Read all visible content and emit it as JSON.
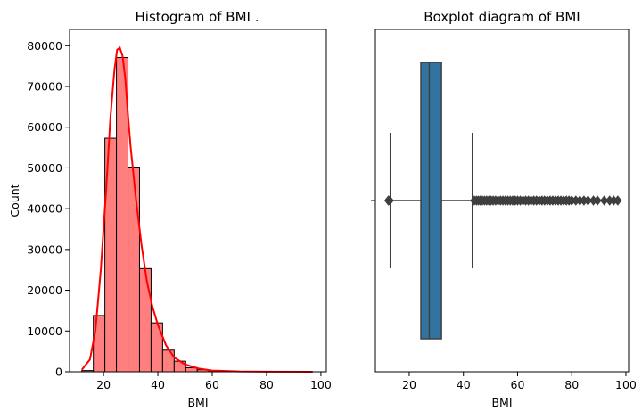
{
  "chart_data": [
    {
      "type": "bar",
      "title": "Histogram of BMI .",
      "xlabel": "BMI",
      "ylabel": "Count",
      "xlim": [
        7.5,
        102
      ],
      "ylim": [
        0,
        84000
      ],
      "xticks": [
        20,
        40,
        60,
        80,
        100
      ],
      "yticks": [
        0,
        10000,
        20000,
        30000,
        40000,
        50000,
        60000,
        70000,
        80000
      ],
      "bins": [
        {
          "x0": 12.0,
          "x1": 16.25,
          "count": 300
        },
        {
          "x0": 16.25,
          "x1": 20.5,
          "count": 13800
        },
        {
          "x0": 20.5,
          "x1": 24.75,
          "count": 57300
        },
        {
          "x0": 24.75,
          "x1": 29.0,
          "count": 77100
        },
        {
          "x0": 29.0,
          "x1": 33.25,
          "count": 50200
        },
        {
          "x0": 33.25,
          "x1": 37.5,
          "count": 25300
        },
        {
          "x0": 37.5,
          "x1": 41.75,
          "count": 12000
        },
        {
          "x0": 41.75,
          "x1": 46.0,
          "count": 5300
        },
        {
          "x0": 46.0,
          "x1": 50.25,
          "count": 2600
        },
        {
          "x0": 50.25,
          "x1": 54.5,
          "count": 1000
        },
        {
          "x0": 54.5,
          "x1": 58.75,
          "count": 500
        },
        {
          "x0": 58.75,
          "x1": 63.0,
          "count": 250
        },
        {
          "x0": 63.0,
          "x1": 67.25,
          "count": 120
        },
        {
          "x0": 67.25,
          "x1": 71.5,
          "count": 60
        },
        {
          "x0": 71.5,
          "x1": 75.75,
          "count": 30
        },
        {
          "x0": 75.75,
          "x1": 80.0,
          "count": 15
        },
        {
          "x0": 80.0,
          "x1": 84.25,
          "count": 10
        },
        {
          "x0": 84.25,
          "x1": 88.5,
          "count": 5
        },
        {
          "x0": 88.5,
          "x1": 92.75,
          "count": 3
        },
        {
          "x0": 92.75,
          "x1": 97.0,
          "count": 2
        }
      ],
      "kde": {
        "x": [
          12,
          15,
          17,
          19,
          21,
          22.5,
          24,
          25,
          26,
          27,
          28,
          29,
          30,
          32,
          34,
          36,
          38,
          40,
          43,
          46,
          50,
          55,
          60,
          70,
          80,
          97
        ],
        "y": [
          500,
          3000,
          10000,
          25000,
          45000,
          62000,
          74000,
          79000,
          79500,
          77500,
          72000,
          63000,
          55000,
          42000,
          31000,
          22000,
          16000,
          11500,
          6500,
          3500,
          1800,
          800,
          300,
          80,
          20,
          0
        ]
      },
      "colors": {
        "fill": "#ff7f7f",
        "edge": "#000000",
        "kde": "#ff0000"
      }
    },
    {
      "type": "box",
      "title": "Boxplot diagram of BMI",
      "xlabel": "BMI",
      "xlim": [
        7.5,
        101
      ],
      "xticks": [
        20,
        40,
        60,
        80,
        100
      ],
      "stats": {
        "whislo": 13,
        "q1": 24.3,
        "median": 27.4,
        "q3": 31.9,
        "whishi": 43.3
      },
      "fliers": [
        12.3,
        12.8,
        44,
        44.8,
        45.5,
        46.2,
        47,
        47.8,
        48.6,
        49.4,
        50.2,
        51,
        51.9,
        52.8,
        53.7,
        54.6,
        55.5,
        56.4,
        57.3,
        58.2,
        59.1,
        60,
        61,
        62,
        63,
        64,
        65,
        66,
        67,
        68,
        69,
        70,
        71,
        72,
        73,
        74,
        75,
        76,
        77,
        78,
        79,
        80,
        81.5,
        83,
        84.5,
        86,
        88,
        89.5,
        92,
        94,
        95.5,
        97
      ],
      "colors": {
        "box": "#3274a1",
        "line": "#3f3f3f"
      }
    }
  ]
}
